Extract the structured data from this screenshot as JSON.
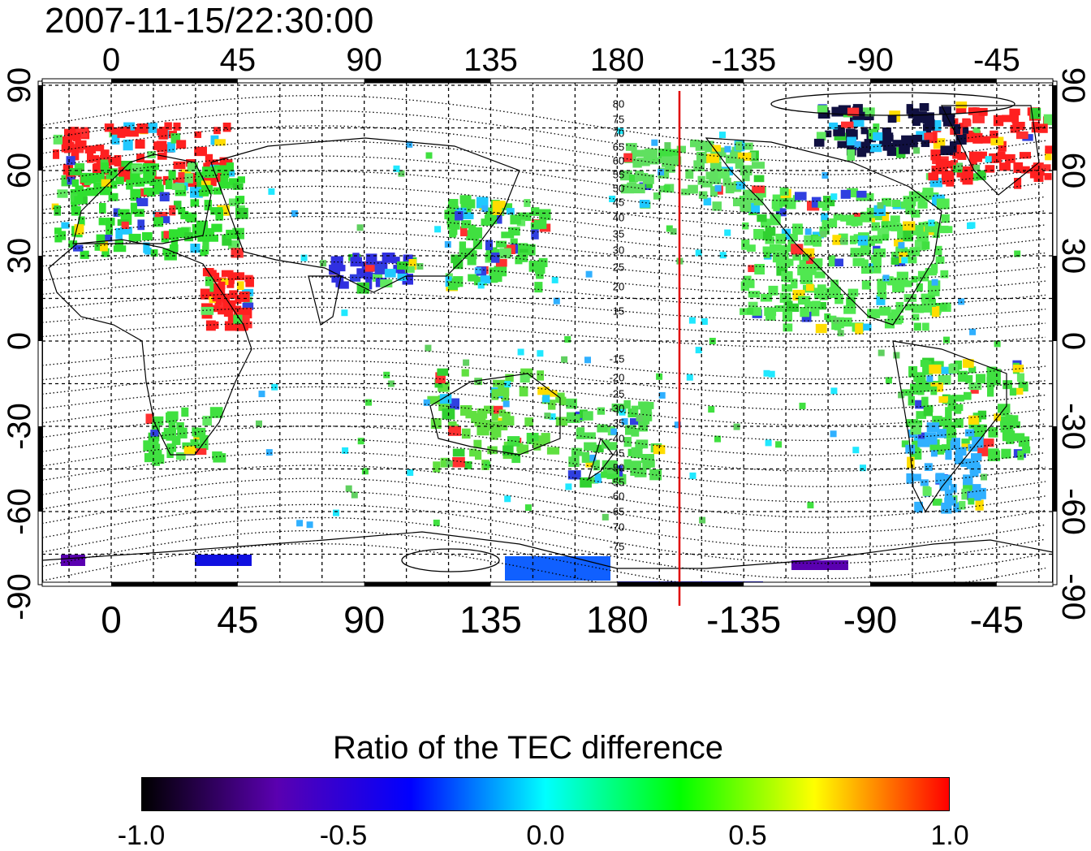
{
  "title": "2007-11-15/22:30:00",
  "top_axis": {
    "labels": [
      "0",
      "45",
      "90",
      "135",
      "180",
      "-135",
      "-90",
      "-45"
    ]
  },
  "bottom_axis": {
    "labels": [
      "0",
      "45",
      "90",
      "135",
      "180",
      "-135",
      "-90",
      "-45"
    ]
  },
  "left_axis": {
    "labels": [
      "90",
      "60",
      "30",
      "0",
      "-30",
      "-60",
      "-90"
    ]
  },
  "right_axis": {
    "labels": [
      "90",
      "60",
      "30",
      "0",
      "-30",
      "-60",
      "-90"
    ]
  },
  "contour_labels": [
    "80",
    "75",
    "70",
    "65",
    "60",
    "55",
    "50",
    "45",
    "40",
    "35",
    "30",
    "25",
    "20",
    "15",
    "-15",
    "-20",
    "-25",
    "-30",
    "-35",
    "-40",
    "-45",
    "-50",
    "-55",
    "-60",
    "-65",
    "-70",
    "-75"
  ],
  "marker_line": {
    "longitude": -150,
    "color": "#e00000"
  },
  "colorbar": {
    "title": "Ratio of the TEC difference",
    "tick_labels": [
      "-1.0",
      "-0.5",
      "0.0",
      "0.5",
      "1.0"
    ],
    "range": [
      -1.0,
      1.0
    ],
    "colors": [
      "#000000",
      "#5a00b0",
      "#0000ff",
      "#00ffff",
      "#00ff00",
      "#ffff00",
      "#ff0000"
    ]
  },
  "data_patches": [
    {
      "region": "europe",
      "color": "#ff2020"
    },
    {
      "region": "europe-asia",
      "color": "#30e030"
    },
    {
      "region": "east-africa",
      "color": "#ff2020"
    },
    {
      "region": "east-asia",
      "color": "#40e040"
    },
    {
      "region": "south-asia",
      "color": "#3030e0"
    },
    {
      "region": "australia",
      "color": "#60e040"
    },
    {
      "region": "new-zealand",
      "color": "#50e050"
    },
    {
      "region": "north-america",
      "color": "#50e850"
    },
    {
      "region": "greenland",
      "color": "#ff2020"
    },
    {
      "region": "arctic-canada",
      "color": "#101040"
    },
    {
      "region": "south-america",
      "color": "#40e040"
    },
    {
      "region": "argentina",
      "color": "#30b0ff"
    },
    {
      "region": "antarctica",
      "color": "#2080ff"
    },
    {
      "region": "southern-africa",
      "color": "#40e040"
    },
    {
      "region": "alaska",
      "color": "#60e060"
    }
  ]
}
